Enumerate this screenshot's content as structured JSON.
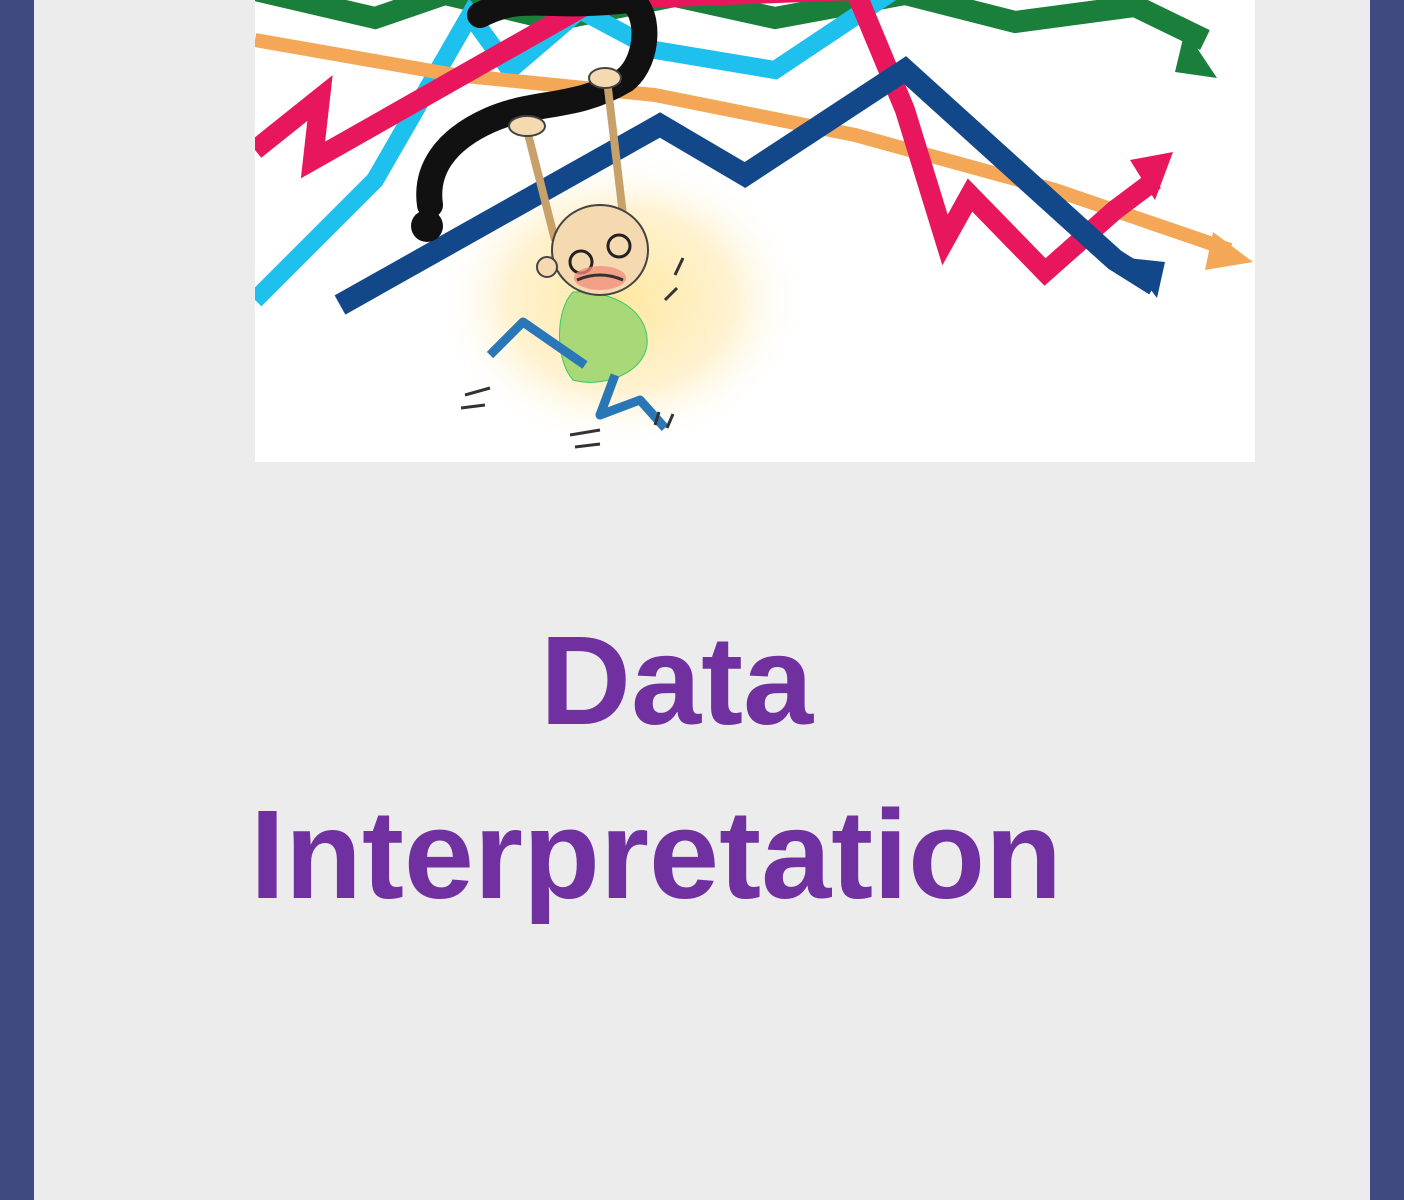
{
  "cover": {
    "title_line_1": "Data",
    "title_line_2": "Interpretation",
    "title_color": "#7030a0",
    "frame_color": "#414a80",
    "page_color": "#ececec"
  },
  "illustration": {
    "subject": "cartoon-man-hanging-from-question-mark-among-chart-lines",
    "line_colors": [
      "#1a7f3a",
      "#1ec0ee",
      "#e8175d",
      "#f4a857",
      "#12478a"
    ]
  }
}
